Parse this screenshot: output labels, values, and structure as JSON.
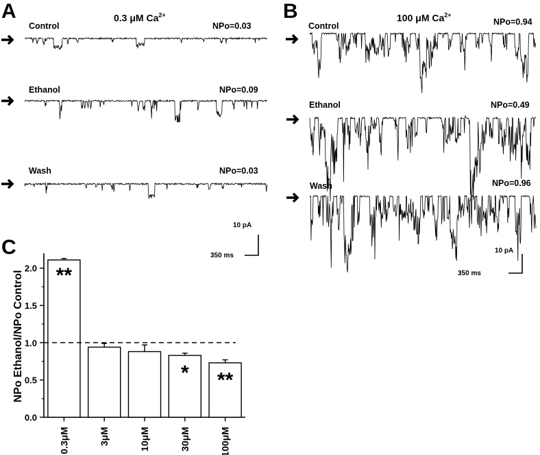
{
  "panels": {
    "A": {
      "letter": "A",
      "title_main": "0.3 μM Ca",
      "title_sup": "2+",
      "traces": [
        {
          "label": "Control",
          "npo": "NPo=0.03",
          "events": 14,
          "big": [
            0.12,
            0.46
          ],
          "seed": 11
        },
        {
          "label": "Ethanol",
          "npo": "NPo=0.09",
          "events": 20,
          "big": [
            0.62,
            0.79
          ],
          "seed": 23
        },
        {
          "label": "Wash",
          "npo": "NPo=0.03",
          "events": 12,
          "big": [
            0.51
          ],
          "seed": 37
        }
      ],
      "scale_y": "10 pA",
      "scale_x": "350 ms"
    },
    "B": {
      "letter": "B",
      "title_main": "100 μM Ca",
      "title_sup": "2+",
      "traces": [
        {
          "label": "Control",
          "npo": "NPo=0.94",
          "events": 60,
          "big": [
            0.49,
            0.93
          ],
          "seed": 51
        },
        {
          "label": "Ethanol",
          "npo": "NPo=0.49",
          "events": 75,
          "big": [
            0.07,
            0.71
          ],
          "seed": 67
        },
        {
          "label": "Wash",
          "npo": "NPo=0.96",
          "events": 80,
          "big": [
            0.15,
            0.62
          ],
          "seed": 79
        }
      ],
      "scale_y": "10 pA",
      "scale_x": "350 ms"
    },
    "C": {
      "letter": "C"
    }
  },
  "chart_data": {
    "type": "bar",
    "categories": [
      "0.3μM",
      "3μM",
      "10μM",
      "30μM",
      "100μM"
    ],
    "values": [
      2.11,
      0.94,
      0.88,
      0.83,
      0.73
    ],
    "errors": [
      0.02,
      0.05,
      0.09,
      0.03,
      0.04
    ],
    "significance": [
      "**",
      "",
      "",
      "*",
      "**"
    ],
    "ylabel": "NPo Ethanol/NPo Control",
    "ylim": [
      0,
      2.2
    ],
    "yticks": [
      "0.0",
      "0.5",
      "1.0",
      "1.5",
      "2.0"
    ],
    "reference_line": 1.0,
    "bar_color": "#ffffff",
    "grid": false
  }
}
